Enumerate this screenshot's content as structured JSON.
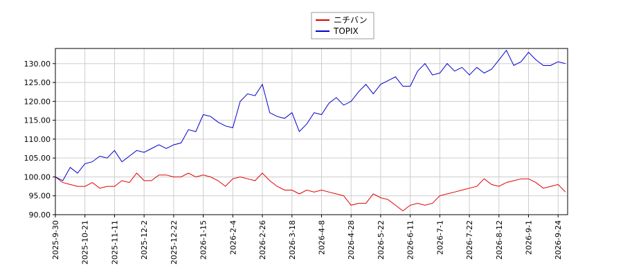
{
  "chart_data": {
    "type": "line",
    "categories": [
      "2025-9-30",
      null,
      null,
      null,
      "2025-10-21",
      null,
      null,
      null,
      "2025-11-11",
      null,
      null,
      null,
      "2025-12-2",
      null,
      null,
      null,
      "2025-12-22",
      null,
      null,
      null,
      "2026-1-15",
      null,
      null,
      null,
      "2026-2-4",
      null,
      null,
      null,
      "2026-2-26",
      null,
      null,
      null,
      "2026-3-18",
      null,
      null,
      null,
      "2026-4-8",
      null,
      null,
      null,
      "2026-4-28",
      null,
      null,
      null,
      "2026-5-22",
      null,
      null,
      null,
      "2026-6-11",
      null,
      null,
      null,
      "2026-7-1",
      null,
      null,
      null,
      "2026-7-22",
      null,
      null,
      null,
      "2026-8-12",
      null,
      null,
      null,
      "2026-9-1",
      null,
      null,
      null,
      "2026-9-24",
      null
    ],
    "series": [
      {
        "name": "ニチバン",
        "color": "#dd0000",
        "values": [
          100,
          98.5,
          98,
          97.5,
          97.5,
          98.5,
          97,
          97.5,
          97.5,
          99,
          98.5,
          101,
          99,
          99,
          100.5,
          100.5,
          100,
          100,
          101,
          100,
          100.5,
          100,
          99,
          97.5,
          99.5,
          100,
          99.5,
          99,
          101,
          99,
          97.5,
          96.5,
          96.5,
          95.5,
          96.5,
          96,
          96.5,
          96,
          95.5,
          95,
          92.5,
          93,
          93,
          95.5,
          94.5,
          94,
          92.5,
          91,
          92.5,
          93,
          92.5,
          93,
          95,
          95.5,
          96,
          96.5,
          97,
          97.5,
          99.5,
          98,
          97.5,
          98.5,
          99,
          99.5,
          99.5,
          98.5,
          97,
          97.5,
          98,
          96
        ]
      },
      {
        "name": "TOPIX",
        "color": "#0000cc",
        "values": [
          100,
          99,
          102.5,
          101,
          103.5,
          104,
          105.5,
          105,
          107,
          104,
          105.5,
          107,
          106.5,
          107.5,
          108.5,
          107.5,
          108.5,
          109,
          112.5,
          112,
          116.5,
          116,
          114.5,
          113.5,
          113,
          120,
          122,
          121.5,
          124.5,
          117,
          116,
          115.5,
          117,
          112,
          114,
          117,
          116.5,
          119.5,
          121,
          119,
          120,
          122.5,
          124.5,
          122,
          124.5,
          125.5,
          126.5,
          124,
          124,
          128,
          130,
          127,
          127.5,
          130,
          128,
          129,
          127,
          129,
          127.5,
          128.5,
          131,
          133.5,
          129.5,
          130.5,
          133,
          131,
          129.5,
          129.5,
          130.5,
          130
        ]
      }
    ],
    "ylim": [
      90,
      134
    ],
    "yticks": [
      {
        "value": 90,
        "label": "90.00"
      },
      {
        "value": 95,
        "label": "95.00"
      },
      {
        "value": 100,
        "label": "100.00"
      },
      {
        "value": 105,
        "label": "105.00"
      },
      {
        "value": 110,
        "label": "110.00"
      },
      {
        "value": 115,
        "label": "115.00"
      },
      {
        "value": 120,
        "label": "120.00"
      },
      {
        "value": 125,
        "label": "125.00"
      },
      {
        "value": 130,
        "label": "130.00"
      }
    ],
    "grid": true,
    "legend": "top"
  }
}
